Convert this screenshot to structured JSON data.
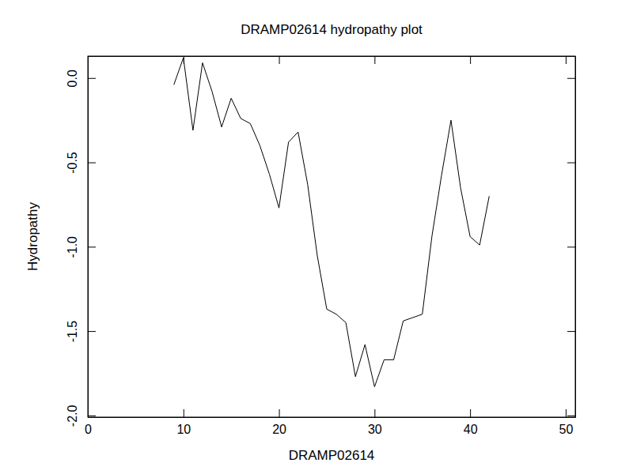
{
  "chart_data": {
    "type": "line",
    "title": "DRAMP02614 hydropathy plot",
    "x_label": "DRAMP02614",
    "y_label": "Hydropathy",
    "x": [
      9,
      10,
      11,
      12,
      13,
      14,
      15,
      16,
      17,
      18,
      19,
      20,
      21,
      22,
      23,
      24,
      25,
      26,
      27,
      28,
      29,
      30,
      31,
      32,
      33,
      34,
      35,
      36,
      37,
      38,
      39,
      40,
      41,
      42
    ],
    "values": [
      -0.04,
      0.12,
      -0.31,
      0.09,
      -0.08,
      -0.29,
      -0.12,
      -0.24,
      -0.27,
      -0.4,
      -0.57,
      -0.77,
      -0.38,
      -0.32,
      -0.63,
      -1.05,
      -1.37,
      -1.4,
      -1.45,
      -1.77,
      -1.58,
      -1.83,
      -1.67,
      -1.67,
      -1.44,
      -1.42,
      -1.4,
      -0.94,
      -0.58,
      -0.25,
      -0.65,
      -0.94,
      -0.99,
      -0.7
    ],
    "color": "#000000",
    "xlim": [
      0,
      51
    ],
    "ylim": [
      -2.01,
      0.13
    ],
    "xticks": [
      0,
      10,
      20,
      30,
      40,
      50
    ],
    "yticks": [
      {
        "value": -2,
        "label": "-2.0"
      },
      -1.5,
      {
        "value": -1,
        "label": "-1.0"
      },
      -0.5,
      {
        "value": 0,
        "label": "0.0"
      }
    ]
  }
}
